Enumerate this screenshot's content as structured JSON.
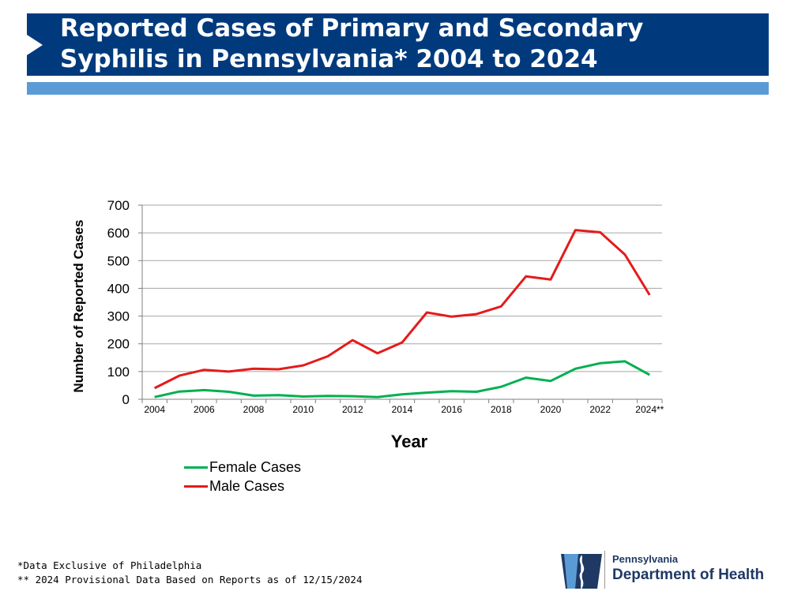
{
  "header": {
    "title": "Reported Cases of Primary and Secondary Syphilis in Pennsylvania* 2004 to 2024"
  },
  "colors": {
    "title_bar": "#003a7d",
    "accent_bar": "#5b9bd5",
    "female": "#00b050",
    "male": "#e41b1b",
    "gridline": "#a6a6a6"
  },
  "chart_data": {
    "type": "line",
    "title": "Reported Cases of Primary and Secondary Syphilis in Pennsylvania* 2004 to 2024",
    "xlabel": "Year",
    "ylabel": "Number of Reported Cases",
    "x": [
      "2004",
      "2005",
      "2006",
      "2007",
      "2008",
      "2009",
      "2010",
      "2011",
      "2012",
      "2013",
      "2014",
      "2015",
      "2016",
      "2017",
      "2018",
      "2019",
      "2020",
      "2021",
      "2022",
      "2023",
      "2024"
    ],
    "x_tick_labels": [
      "2004",
      "2006",
      "2008",
      "2010",
      "2012",
      "2014",
      "2016",
      "2018",
      "2020",
      "2022",
      "2024**"
    ],
    "y_ticks": [
      0,
      100,
      200,
      300,
      400,
      500,
      600,
      700
    ],
    "ylim": [
      0,
      700
    ],
    "grid": true,
    "legend_position": "bottom-left",
    "series": [
      {
        "name": "Female Cases",
        "color": "#00b050",
        "values": [
          8,
          28,
          33,
          27,
          13,
          15,
          10,
          12,
          11,
          8,
          18,
          24,
          29,
          27,
          45,
          78,
          66,
          110,
          130,
          137,
          88
        ]
      },
      {
        "name": "Male Cases",
        "color": "#e41b1b",
        "values": [
          40,
          85,
          106,
          100,
          110,
          108,
          122,
          155,
          213,
          166,
          205,
          313,
          298,
          307,
          335,
          443,
          432,
          610,
          602,
          522,
          376
        ]
      }
    ]
  },
  "footnotes": {
    "line1": "*Data Exclusive of Philadelphia",
    "line2": "** 2024 Provisional Data Based on Reports as of 12/15/2024"
  },
  "logo": {
    "line1": "Pennsylvania",
    "line2": "Department of Health"
  }
}
